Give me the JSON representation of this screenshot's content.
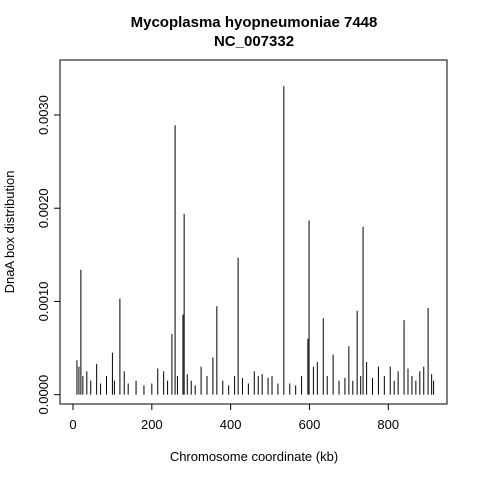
{
  "chart_data": {
    "type": "spike",
    "title": "Mycoplasma hyopneumoniae 7448",
    "subtitle": "NC_007332",
    "x_label": "Chromosome coordinate (kb)",
    "y_label": "DnaA box distribution",
    "color": "#000000",
    "xlim": [
      -33,
      949
    ],
    "ylim": [
      -0.0001,
      0.00359
    ],
    "xticks": [
      0,
      200,
      400,
      600,
      800
    ],
    "yticks": [
      {
        "value": 0,
        "label": "0.0000"
      },
      {
        "value": 0.001,
        "label": "0.0010"
      },
      {
        "value": 0.002,
        "label": "0.0020"
      },
      {
        "value": 0.003,
        "label": "0.0030"
      }
    ],
    "x": [
      10,
      15,
      20,
      25,
      35,
      45,
      60,
      70,
      85,
      100,
      105,
      119,
      130,
      140,
      160,
      180,
      200,
      215,
      230,
      240,
      251,
      259,
      265,
      279,
      282,
      290,
      300,
      310,
      325,
      340,
      355,
      365,
      380,
      395,
      410,
      419,
      430,
      445,
      460,
      470,
      480,
      495,
      505,
      520,
      535,
      550,
      565,
      580,
      596,
      599,
      610,
      620,
      635,
      645,
      660,
      675,
      690,
      700,
      710,
      721,
      730,
      736,
      745,
      760,
      775,
      790,
      805,
      815,
      825,
      840,
      850,
      860,
      870,
      880,
      890,
      901,
      910,
      915
    ],
    "values": [
      0.00037,
      0.0003,
      0.00134,
      0.0002,
      0.00025,
      0.00015,
      0.00033,
      0.00012,
      0.0002,
      0.00045,
      0.00015,
      0.00103,
      0.00025,
      0.00012,
      0.00015,
      0.0001,
      0.00012,
      0.00028,
      0.00025,
      0.00015,
      0.00065,
      0.00289,
      0.0002,
      0.00086,
      0.00194,
      0.00022,
      0.00015,
      0.0001,
      0.0003,
      0.0002,
      0.0004,
      0.00095,
      0.00015,
      0.0001,
      0.0002,
      0.00147,
      0.00018,
      0.00012,
      0.00025,
      0.0002,
      0.00022,
      0.00018,
      0.0002,
      0.00012,
      0.00331,
      0.00012,
      0.0001,
      0.0002,
      0.0006,
      0.00187,
      0.0003,
      0.00035,
      0.00082,
      0.0002,
      0.00043,
      0.00015,
      0.00018,
      0.00052,
      0.00015,
      0.0009,
      0.0002,
      0.0018,
      0.00035,
      0.00018,
      0.0003,
      0.0002,
      0.0003,
      0.00015,
      0.00025,
      0.0008,
      0.00028,
      0.0002,
      0.00015,
      0.00025,
      0.0003,
      0.00093,
      0.00022,
      0.00015
    ]
  }
}
